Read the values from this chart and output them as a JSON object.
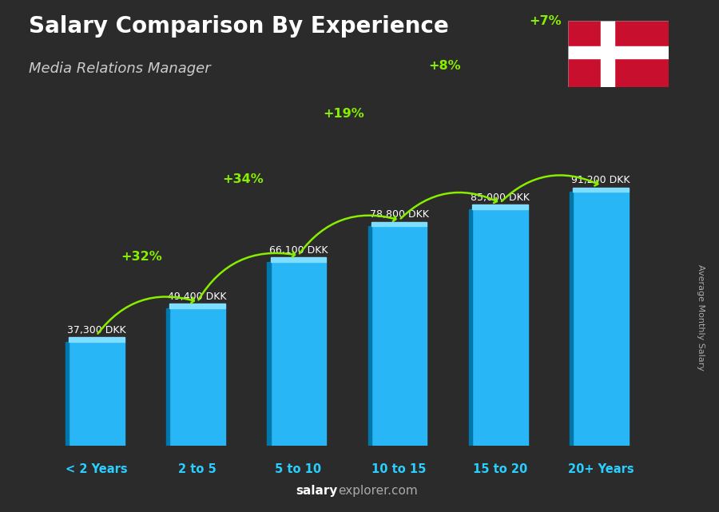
{
  "title": "Salary Comparison By Experience",
  "subtitle": "Media Relations Manager",
  "ylabel": "Average Monthly Salary",
  "footer_bold": "salary",
  "footer_normal": "explorer.com",
  "categories": [
    "< 2 Years",
    "2 to 5",
    "5 to 10",
    "10 to 15",
    "15 to 20",
    "20+ Years"
  ],
  "values": [
    37300,
    49400,
    66100,
    78800,
    85000,
    91200
  ],
  "labels": [
    "37,300 DKK",
    "49,400 DKK",
    "66,100 DKK",
    "78,800 DKK",
    "85,000 DKK",
    "91,200 DKK"
  ],
  "pct_changes": [
    "+32%",
    "+34%",
    "+19%",
    "+8%",
    "+7%"
  ],
  "bar_color": "#29b6f6",
  "bar_color_dark": "#0077aa",
  "bar_color_light": "#7fdeff",
  "bg_color": "#2b2b2b",
  "title_color": "#ffffff",
  "subtitle_color": "#cccccc",
  "label_color": "#ffffff",
  "pct_color": "#88ee00",
  "arrow_color": "#88ee00",
  "cat_color": "#29cfff",
  "footer_color": "#aaaaaa",
  "ylabel_color": "#aaaaaa",
  "flag_red": "#C8102E",
  "flag_white": "#ffffff"
}
